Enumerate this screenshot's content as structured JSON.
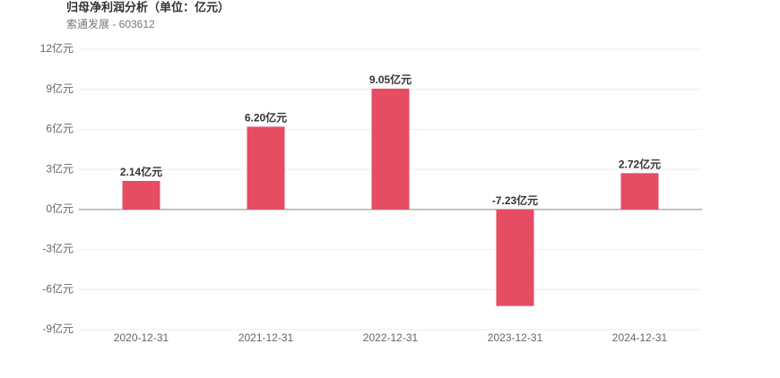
{
  "chart_data": {
    "type": "bar",
    "title": "归母净利润分析（单位：亿元）",
    "subtitle": "索通发展 - 603612",
    "categories": [
      "2020-12-31",
      "2021-12-31",
      "2022-12-31",
      "2023-12-31",
      "2024-12-31"
    ],
    "values": [
      2.14,
      6.2,
      9.05,
      -7.23,
      2.72
    ],
    "value_labels": [
      "2.14亿元",
      "6.20亿元",
      "9.05亿元",
      "-7.23亿元",
      "2.72亿元"
    ],
    "color": "#e64c62",
    "ylim": [
      -9,
      12
    ],
    "yticks": [
      {
        "value": -9,
        "label": "-9亿元"
      },
      {
        "value": -6,
        "label": "-6亿元"
      },
      {
        "value": -3,
        "label": "-3亿元"
      },
      {
        "value": 0,
        "label": "0亿元"
      },
      {
        "value": 3,
        "label": "3亿元"
      },
      {
        "value": 6,
        "label": "6亿元"
      },
      {
        "value": 9,
        "label": "9亿元"
      },
      {
        "value": 12,
        "label": "12亿元"
      }
    ],
    "grid": true
  }
}
